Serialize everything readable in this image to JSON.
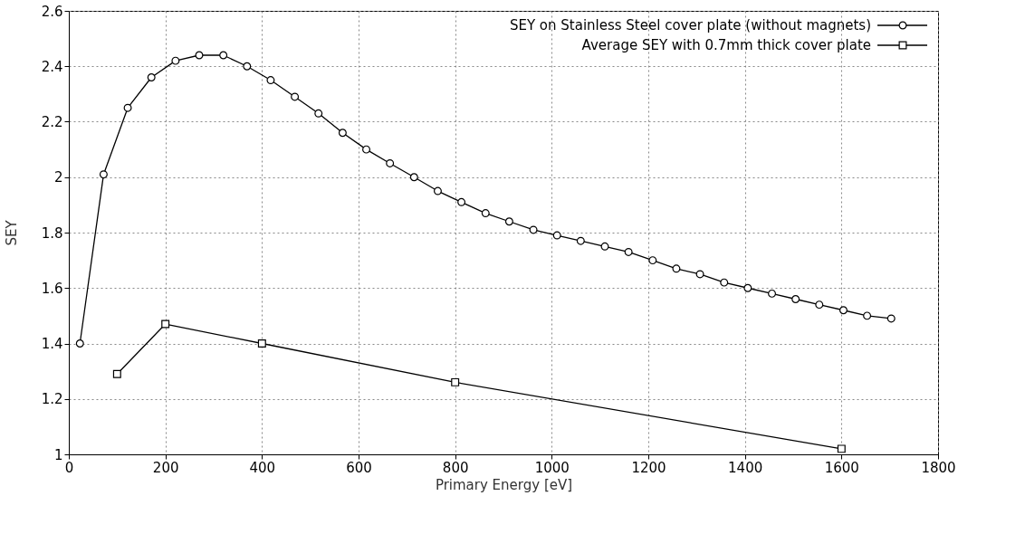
{
  "chart_data": {
    "type": "line",
    "xlabel": "Primary Energy [eV]",
    "ylabel": "SEY",
    "xlim": [
      0,
      1800
    ],
    "xticks": [
      0,
      200,
      400,
      600,
      800,
      1000,
      1200,
      1400,
      1600,
      1800
    ],
    "ylim": [
      1,
      2.6
    ],
    "yticks": [
      1,
      1.2,
      1.4,
      1.6,
      1.8,
      2,
      2.2,
      2.4,
      2.6
    ],
    "grid": true,
    "legend": "top right",
    "line_style": "solid",
    "series": [
      {
        "name": "SEY on Stainless Steel cover plate (without magnets)",
        "color": "#000000",
        "marker": "circle",
        "x": [
          23,
          72,
          122,
          171,
          221,
          270,
          320,
          369,
          418,
          468,
          517,
          567,
          616,
          665,
          715,
          764,
          813,
          863,
          912,
          962,
          1011,
          1060,
          1110,
          1159,
          1209,
          1258,
          1307,
          1357,
          1406,
          1456,
          1505,
          1554,
          1604,
          1653,
          1703
        ],
        "values": [
          1.4,
          2.01,
          2.25,
          2.36,
          2.42,
          2.44,
          2.44,
          2.4,
          2.35,
          2.29,
          2.23,
          2.16,
          2.1,
          2.05,
          2.0,
          1.95,
          1.91,
          1.87,
          1.84,
          1.81,
          1.79,
          1.77,
          1.75,
          1.73,
          1.7,
          1.67,
          1.65,
          1.62,
          1.6,
          1.58,
          1.56,
          1.54,
          1.52,
          1.5,
          1.49
        ]
      },
      {
        "name": "Average SEY with 0.7mm thick cover plate",
        "color": "#000000",
        "marker": "square",
        "x": [
          100,
          200,
          400,
          800,
          1600
        ],
        "values": [
          1.29,
          1.47,
          1.4,
          1.26,
          1.02
        ]
      }
    ]
  }
}
